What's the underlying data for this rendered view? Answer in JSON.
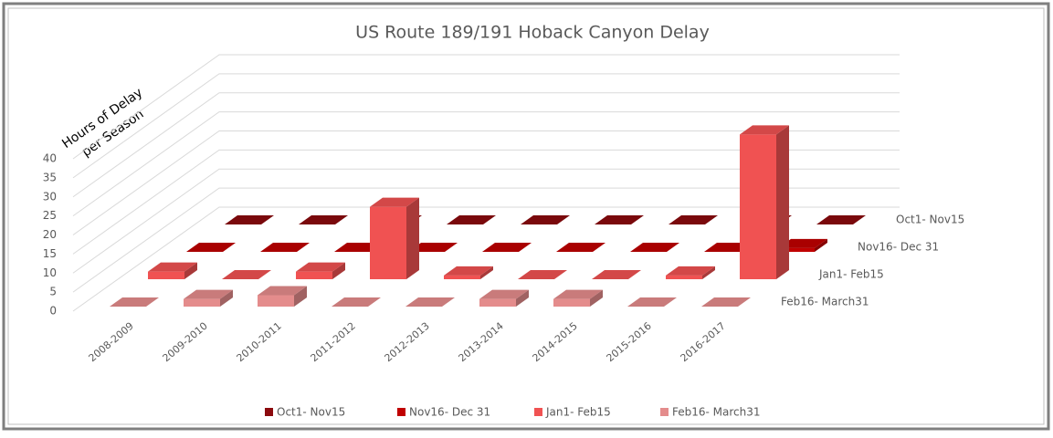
{
  "chart_data": {
    "type": "bar3d",
    "title": "US Route 189/191 Hoback Canyon Delay",
    "y_label": [
      "Hours of Delay",
      "per Season"
    ],
    "categories": [
      "2008-2009",
      "2009-2010",
      "2010-2011",
      "2011-2012",
      "2012-2013",
      "2013-2014",
      "2014-2015",
      "2015-2016",
      "2016-2017"
    ],
    "series": [
      {
        "name": "Oct1- Nov15",
        "color": "#8b0a0e",
        "values": [
          0,
          0,
          0,
          0,
          0,
          0,
          0,
          0,
          0
        ]
      },
      {
        "name": "Nov16- Dec 31",
        "color": "#c00000",
        "values": [
          0,
          0,
          0,
          0,
          0,
          0,
          0,
          0,
          1
        ]
      },
      {
        "name": "Jan1- Feb15",
        "color": "#f05252",
        "values": [
          2,
          0,
          2,
          19,
          1,
          0,
          0,
          1,
          38
        ]
      },
      {
        "name": "Feb16- March31",
        "color": "#e48c8c",
        "values": [
          0,
          2,
          3,
          0,
          0,
          2,
          2,
          0,
          0
        ]
      }
    ],
    "ylim": [
      0,
      40
    ],
    "yticks": [
      0,
      5,
      10,
      15,
      20,
      25,
      30,
      35,
      40
    ],
    "grid": true,
    "legend": "bottom"
  }
}
